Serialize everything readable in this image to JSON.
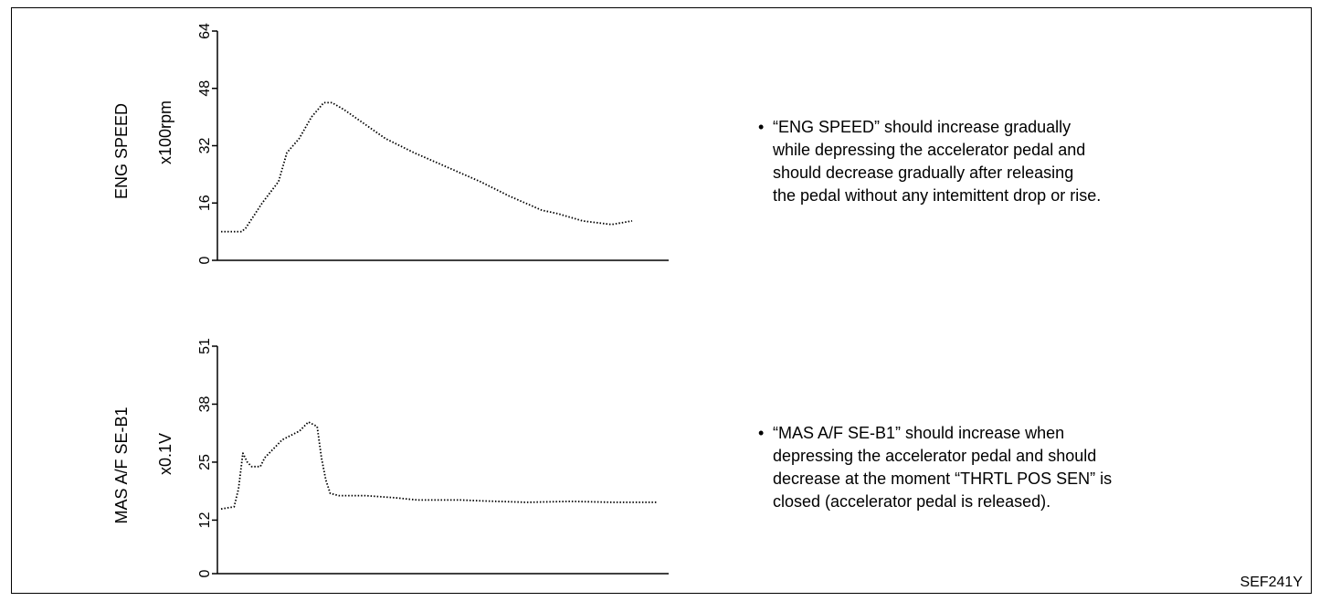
{
  "chart_data": [
    {
      "type": "line",
      "title": "",
      "ylabel": "ENG SPEED",
      "yunit": "x100rpm",
      "ylim": [
        0,
        64
      ],
      "yticks": [
        "0",
        "16",
        "32",
        "48",
        "64"
      ],
      "line_style": "dotted",
      "grid": false,
      "series": [
        {
          "x": [
            0,
            5,
            6,
            10,
            14,
            16,
            19,
            22,
            25,
            27,
            30,
            35,
            40,
            47,
            55,
            63,
            70,
            78,
            82,
            88,
            95,
            100
          ],
          "values": [
            8,
            8,
            9,
            16,
            22,
            30,
            34,
            40,
            44,
            44,
            42,
            38,
            34,
            30,
            26,
            22,
            18,
            14,
            13,
            11,
            10,
            11
          ]
        }
      ]
    },
    {
      "type": "line",
      "title": "",
      "ylabel": "MAS A/F SE-B1",
      "yunit": "x0.1V",
      "ylim": [
        0,
        51
      ],
      "yticks": [
        "0",
        "12",
        "25",
        "38",
        "51"
      ],
      "line_style": "dotted",
      "grid": false,
      "series": [
        {
          "x": [
            0,
            3,
            4,
            5,
            6,
            7,
            8,
            9,
            10,
            12,
            14,
            18,
            20,
            22,
            23,
            24,
            25,
            27,
            30,
            33,
            40,
            45,
            50,
            55,
            60,
            70,
            80,
            90,
            100
          ],
          "values": [
            14.5,
            15,
            19,
            27,
            25,
            24,
            24,
            24,
            26,
            28,
            30,
            32,
            34,
            33,
            26,
            21,
            18,
            17.5,
            17.5,
            17.5,
            17,
            16.5,
            16.5,
            16.5,
            16.3,
            16,
            16.2,
            16,
            16
          ]
        }
      ]
    }
  ],
  "notes": [
    {
      "bullet": "•",
      "lines": [
        "“ENG SPEED” should increase gradually",
        "while depressing the accelerator pedal and",
        "should decrease gradually after releasing",
        "the pedal without any intemittent drop or rise."
      ]
    },
    {
      "bullet": "•",
      "lines": [
        "“MAS A/F SE-B1” should increase when",
        "depressing the accelerator pedal and  should",
        "decrease at the moment “THRTL POS SEN” is",
        "closed (accelerator pedal is released)."
      ]
    }
  ],
  "figure_id": "SEF241Y"
}
